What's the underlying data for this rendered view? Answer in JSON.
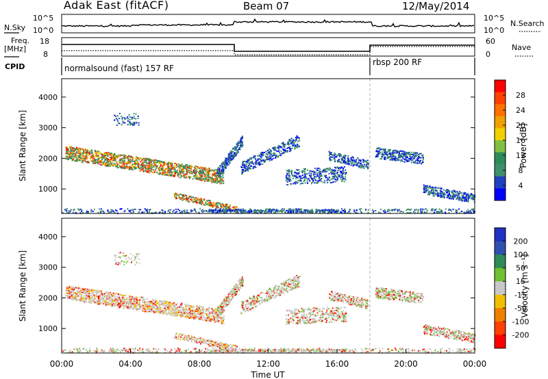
{
  "header": {
    "station": "Adak East (fitACF)",
    "beam": "Beam 07",
    "date": "12/May/2014"
  },
  "panels": {
    "nsky": {
      "left_label": "N.Sky",
      "right_label": "N.Search",
      "ticks_left": [
        "10^5",
        "10^0"
      ],
      "ticks_right": [
        "10^5",
        "10^0"
      ]
    },
    "freq": {
      "left_label": "Freq.",
      "left_unit": "[MHz]",
      "right_label": "Nave",
      "ticks_left": [
        "18",
        "8"
      ],
      "ticks_right": [
        "60",
        "0"
      ]
    },
    "cpid": {
      "label": "CPID",
      "programs": [
        {
          "name": "normalsound (fast) 157 RF",
          "start_hour": 0
        },
        {
          "name": "rbsp 200 RF",
          "start_hour": 18
        }
      ]
    }
  },
  "chart_data": [
    {
      "type": "heatmap",
      "name": "power",
      "xlabel": "",
      "ylabel": "Slant Range [km]",
      "xlim": [
        0,
        24
      ],
      "ylim": [
        200,
        4600
      ],
      "yticks": [
        1000,
        2000,
        3000,
        4000
      ],
      "colorbar": {
        "label": "Power [dB]",
        "ticks": [
          4,
          8,
          12,
          16,
          20,
          24,
          28
        ],
        "colors": [
          "#0000ff",
          "#2040c0",
          "#3f8f6a",
          "#2e8b57",
          "#80c040",
          "#f0d000",
          "#f0a000",
          "#ff7000",
          "#ff4000",
          "#ff0000"
        ]
      }
    },
    {
      "type": "heatmap",
      "name": "velocity",
      "xlabel": "Time UT",
      "ylabel": "Slant Range [km]",
      "xlim": [
        0,
        24
      ],
      "ylim": [
        200,
        4600
      ],
      "yticks": [
        1000,
        2000,
        3000,
        4000
      ],
      "xticks": [
        "00:00",
        "04:00",
        "08:00",
        "12:00",
        "16:00",
        "20:00",
        "00:00"
      ],
      "colorbar": {
        "label": "Velocity [m s⁻¹]",
        "ticks": [
          200,
          100,
          50,
          15,
          -15,
          -50,
          -100,
          -200
        ],
        "colors": [
          "#2030c0",
          "#3050b0",
          "#2e8b57",
          "#70c030",
          "#c8c8c8",
          "#f0c000",
          "#f08000",
          "#ff4000",
          "#ff0000"
        ]
      }
    }
  ]
}
